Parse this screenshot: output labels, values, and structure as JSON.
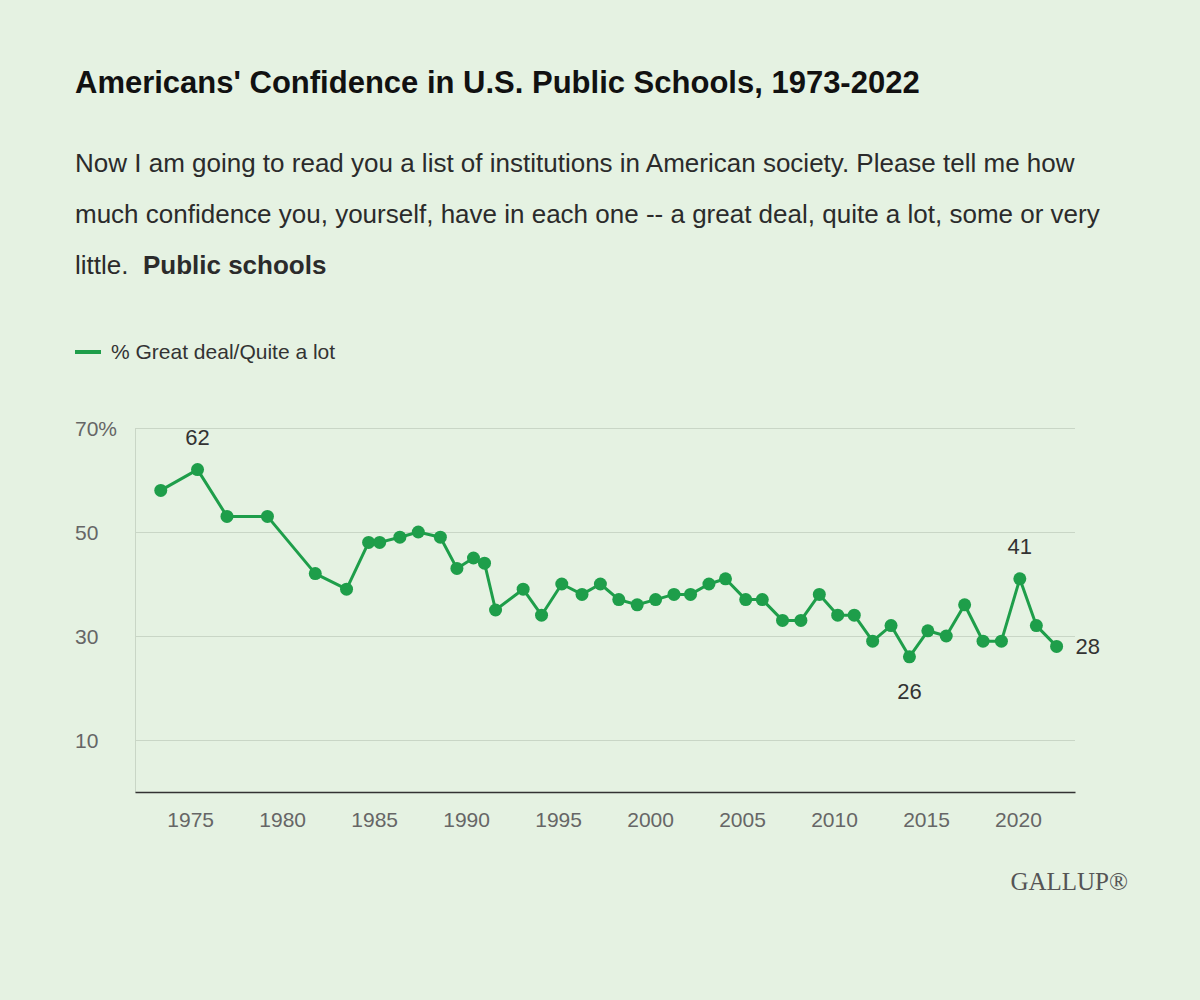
{
  "chart_data": {
    "type": "line",
    "title": "Americans' Confidence in U.S. Public Schools, 1973-2022",
    "subtitle": "Now I am going to read you a list of institutions in American society. Please tell me how much confidence you, yourself, have in each one -- a great deal, quite a lot, some or very little.",
    "subtitle_item": "Public schools",
    "source": "GALLUP®",
    "x": [
      1973.4,
      1975.4,
      1977.0,
      1979.2,
      1981.8,
      1983.5,
      1984.7,
      1985.3,
      1986.4,
      1987.4,
      1988.6,
      1989.5,
      1990.4,
      1991.0,
      1991.6,
      1993.1,
      1994.1,
      1995.2,
      1996.3,
      1997.3,
      1998.3,
      1999.3,
      2000.3,
      2001.3,
      2002.2,
      2003.2,
      2004.1,
      2005.2,
      2006.1,
      2007.2,
      2008.2,
      2009.2,
      2010.2,
      2011.1,
      2012.1,
      2013.1,
      2014.1,
      2015.1,
      2016.1,
      2017.1,
      2018.1,
      2019.1,
      2020.1,
      2021.0,
      2022.1
    ],
    "series": [
      {
        "name": "% Great deal/Quite a lot",
        "color": "#1e9e4a",
        "marker": "circle",
        "line_style": "solid",
        "values": [
          58,
          62,
          53,
          53,
          42,
          39,
          48,
          48,
          49,
          50,
          49,
          43,
          45,
          44,
          35,
          39,
          34,
          40,
          38,
          40,
          37,
          36,
          37,
          38,
          38,
          40,
          41,
          37,
          37,
          33,
          33,
          38,
          34,
          34,
          29,
          32,
          26,
          31,
          30,
          36,
          29,
          29,
          41,
          32,
          28
        ]
      }
    ],
    "annotations": [
      {
        "x": 1975.4,
        "y": 62,
        "text": "62"
      },
      {
        "x": 2020.1,
        "y": 41,
        "text": "41"
      },
      {
        "x": 2014.1,
        "y": 26,
        "text": "26"
      },
      {
        "x": 2022.1,
        "y": 28,
        "text": "28"
      }
    ],
    "xlim": [
      1972,
      2023.1
    ],
    "xticks": [
      1975,
      1980,
      1985,
      1990,
      1995,
      2000,
      2005,
      2010,
      2015,
      2020
    ],
    "ylim": [
      0,
      70
    ],
    "yticks": [
      10,
      30,
      50,
      {
        "value": 70,
        "label": "70%"
      }
    ],
    "grid": true,
    "legend": "top-left"
  }
}
